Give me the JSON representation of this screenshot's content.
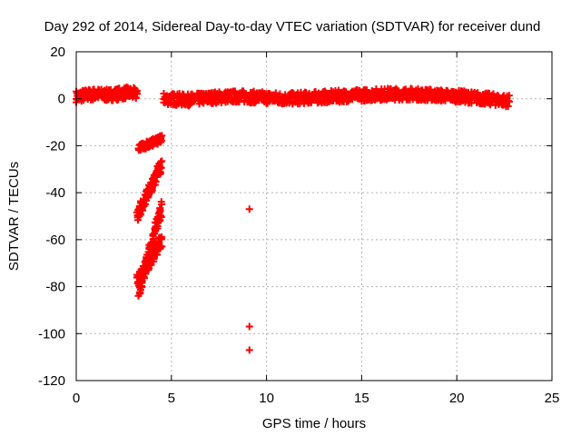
{
  "chart_data": {
    "type": "scatter",
    "title": "Day 292 of 2014, Sidereal Day-to-day VTEC variation (SDTVAR) for receiver dund",
    "xlabel": "GPS time / hours",
    "ylabel": "SDTVAR / TECUs",
    "xlim": [
      0,
      25
    ],
    "ylim": [
      -120,
      20
    ],
    "xticks": [
      0,
      5,
      10,
      15,
      20,
      25
    ],
    "yticks": [
      20,
      0,
      -20,
      -40,
      -60,
      -80,
      -100,
      -120
    ],
    "grid": true,
    "marker": "plus",
    "color": "#ff0000",
    "series": [
      {
        "name": "SDTVAR",
        "bands": [
          {
            "x_start": 0.0,
            "x_end": 3.2,
            "y_center": [
              1,
              1.5,
              2,
              1.5,
              2,
              2.5,
              2
            ],
            "half_width": 2.5
          },
          {
            "x_start": 4.6,
            "x_end": 22.8,
            "y_center": [
              0,
              -0.5,
              0.5,
              1,
              0.5,
              0,
              0.5,
              1,
              1.5,
              2,
              2,
              1.5,
              1,
              0,
              -1
            ],
            "half_width": 2.5
          }
        ],
        "streaks": [
          {
            "x0": 3.3,
            "y0": -21,
            "x1": 4.5,
            "y1": -17,
            "half_width": 1.5
          },
          {
            "x0": 3.2,
            "y0": -50,
            "x1": 4.5,
            "y1": -28,
            "half_width": 3
          },
          {
            "x0": 3.3,
            "y0": -82,
            "x1": 4.5,
            "y1": -46,
            "half_width": 3.5
          },
          {
            "x0": 3.2,
            "y0": -78,
            "x1": 4.5,
            "y1": -60,
            "half_width": 3
          }
        ],
        "points": [
          {
            "x": 9.1,
            "y": -47
          },
          {
            "x": 9.1,
            "y": -97
          },
          {
            "x": 9.1,
            "y": -107
          }
        ]
      }
    ]
  }
}
